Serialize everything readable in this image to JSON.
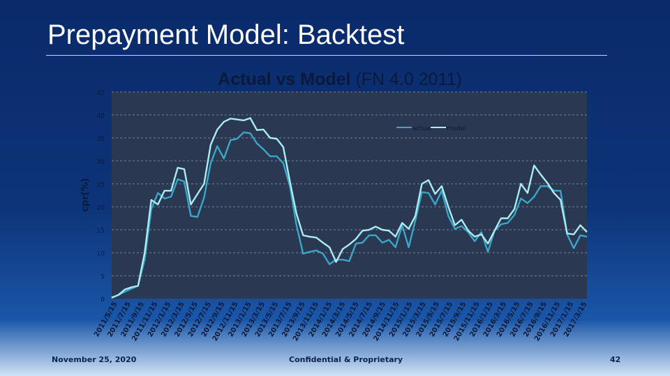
{
  "slide": {
    "title": "Prepayment Model:  Backtest",
    "footer_date": "November 25, 2020",
    "footer_center": "Confidential & Proprietary",
    "page_number": "42"
  },
  "colors": {
    "plot_background": "#2b3852",
    "actual": "#3aa7c9",
    "model": "#a9ecf2",
    "grid": "#8d97a8"
  },
  "chart_data": {
    "type": "line",
    "title_bold": "Actual vs Model",
    "title_rest": " (FN 4.0 2011)",
    "ylabel": "cpr(%)",
    "ylim": [
      0,
      45
    ],
    "yticks": [
      0,
      5,
      10,
      15,
      20,
      25,
      30,
      35,
      40,
      45
    ],
    "grid": true,
    "legend_position": "top-right",
    "x_tick_labels": [
      "2011/5/15",
      "2011/7/15",
      "2011/9/15",
      "2011/11/15",
      "2012/1/15",
      "2012/3/15",
      "2012/5/15",
      "2012/7/15",
      "2012/9/15",
      "2012/11/15",
      "2013/1/15",
      "2013/3/15",
      "2013/5/15",
      "2013/7/15",
      "2013/9/15",
      "2013/11/15",
      "2014/1/15",
      "2014/3/15",
      "2014/5/15",
      "2014/7/15",
      "2014/9/15",
      "2014/11/15",
      "2015/1/15",
      "2015/3/15",
      "2015/5/15",
      "2015/7/15",
      "2015/9/15",
      "2015/11/15",
      "2016/1/15",
      "2016/3/15",
      "2016/5/15",
      "2016/7/15",
      "2016/9/15",
      "2016/11/15",
      "2017/1/15",
      "2017/3/15"
    ],
    "series": [
      {
        "name": "actual",
        "values": [
          0.3,
          0.8,
          1.5,
          2.2,
          2.8,
          8.5,
          19.5,
          23.0,
          21.8,
          22.2,
          26.0,
          25.5,
          18.0,
          17.8,
          22.0,
          29.5,
          33.2,
          30.5,
          34.5,
          34.8,
          36.2,
          36.0,
          33.8,
          32.5,
          31.0,
          31.0,
          29.5,
          24.5,
          16.0,
          9.8,
          10.2,
          10.5,
          9.8,
          7.5,
          8.5,
          8.5,
          8.2,
          12.0,
          12.2,
          13.8,
          13.8,
          12.2,
          12.8,
          11.2,
          16.0,
          11.2,
          17.0,
          23.2,
          23.0,
          20.5,
          23.5,
          18.0,
          15.2,
          15.8,
          14.5,
          12.5,
          14.5,
          10.2,
          14.8,
          16.2,
          16.5,
          18.2,
          21.8,
          20.8,
          22.2,
          24.5,
          24.5,
          23.5,
          23.5,
          14.0,
          11.0,
          13.8,
          13.5
        ]
      },
      {
        "name": "model",
        "values": [
          0.2,
          0.8,
          2.0,
          2.5,
          2.8,
          10.0,
          21.5,
          20.5,
          23.5,
          23.5,
          28.5,
          28.2,
          20.5,
          22.8,
          25.0,
          33.5,
          36.8,
          38.5,
          39.2,
          39.0,
          38.8,
          39.3,
          36.7,
          36.8,
          35.0,
          34.8,
          33.0,
          25.5,
          18.5,
          13.8,
          13.5,
          13.3,
          12.2,
          11.2,
          8.0,
          10.8,
          11.8,
          13.0,
          14.8,
          15.0,
          15.7,
          15.0,
          14.8,
          13.5,
          16.5,
          15.2,
          18.0,
          25.0,
          25.8,
          22.8,
          24.5,
          20.0,
          16.0,
          17.2,
          14.8,
          13.5,
          14.0,
          12.0,
          14.8,
          17.5,
          17.5,
          19.5,
          25.0,
          23.0,
          29.0,
          27.0,
          25.2,
          23.0,
          21.5,
          14.2,
          14.0,
          16.0,
          14.5
        ]
      }
    ]
  }
}
